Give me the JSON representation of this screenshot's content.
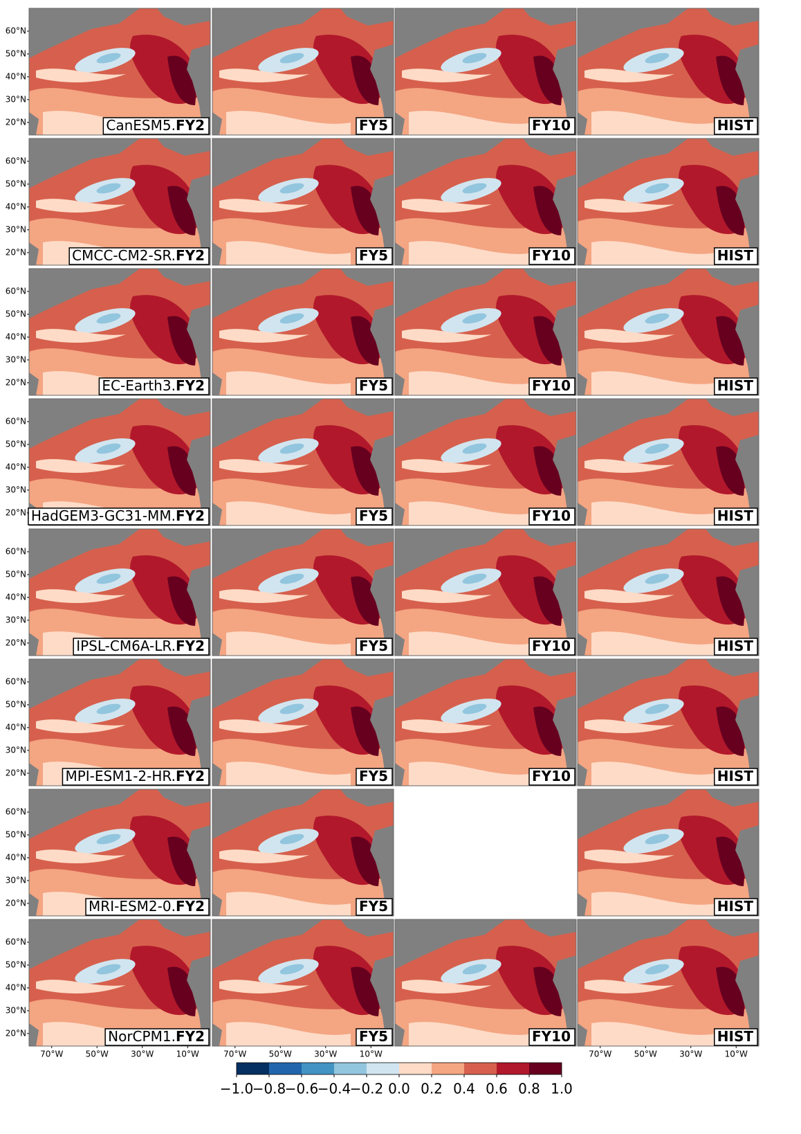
{
  "chart_data": {
    "type": "map-grid",
    "xlim": [
      -80,
      0
    ],
    "ylim": [
      14.5,
      70
    ],
    "lat_ticks": [
      {
        "value": 60,
        "label": "60°N"
      },
      {
        "value": 50,
        "label": "50°N"
      },
      {
        "value": 40,
        "label": "40°N"
      },
      {
        "value": 30,
        "label": "30°N"
      },
      {
        "value": 20,
        "label": "20°N"
      }
    ],
    "lon_ticks": [
      {
        "value": -70,
        "label": "70°W"
      },
      {
        "value": -50,
        "label": "50°W"
      },
      {
        "value": -30,
        "label": "30°W"
      },
      {
        "value": -10,
        "label": "10°W"
      }
    ],
    "rows": [
      {
        "model": "CanESM5.",
        "labels": [
          "FY2",
          "FY5",
          "FY10",
          "HIST"
        ]
      },
      {
        "model": "CMCC-CM2-SR.",
        "labels": [
          "FY2",
          "FY5",
          "FY10",
          "HIST"
        ]
      },
      {
        "model": "EC-Earth3.",
        "labels": [
          "FY2",
          "FY5",
          "FY10",
          "HIST"
        ]
      },
      {
        "model": "HadGEM3-GC31-MM.",
        "labels": [
          "FY2",
          "FY5",
          "FY10",
          "HIST"
        ]
      },
      {
        "model": "IPSL-CM6A-LR.",
        "labels": [
          "FY2",
          "FY5",
          "FY10",
          "HIST"
        ]
      },
      {
        "model": "MPI-ESM1-2-HR.",
        "labels": [
          "FY2",
          "FY5",
          "FY10",
          "HIST"
        ]
      },
      {
        "model": "MRI-ESM2-0.",
        "labels": [
          "FY2",
          "FY5",
          null,
          "HIST"
        ]
      },
      {
        "model": "NorCPM1.",
        "labels": [
          "FY2",
          "FY5",
          "FY10",
          "HIST"
        ]
      }
    ],
    "colorbar": {
      "ticks": [
        {
          "value": -1.0,
          "label": "−1.0"
        },
        {
          "value": -0.8,
          "label": "−0.8"
        },
        {
          "value": -0.6,
          "label": "−0.6"
        },
        {
          "value": -0.4,
          "label": "−0.4"
        },
        {
          "value": -0.2,
          "label": "−0.2"
        },
        {
          "value": 0.0,
          "label": "0.0"
        },
        {
          "value": 0.2,
          "label": "0.2"
        },
        {
          "value": 0.4,
          "label": "0.4"
        },
        {
          "value": 0.6,
          "label": "0.6"
        },
        {
          "value": 0.8,
          "label": "0.8"
        },
        {
          "value": 1.0,
          "label": "1.0"
        }
      ],
      "colors": [
        "#053061",
        "#2166ac",
        "#4393c3",
        "#92c5de",
        "#d1e5f0",
        "#fddbc7",
        "#f4a582",
        "#d6604d",
        "#b2182b",
        "#67001f"
      ]
    }
  }
}
